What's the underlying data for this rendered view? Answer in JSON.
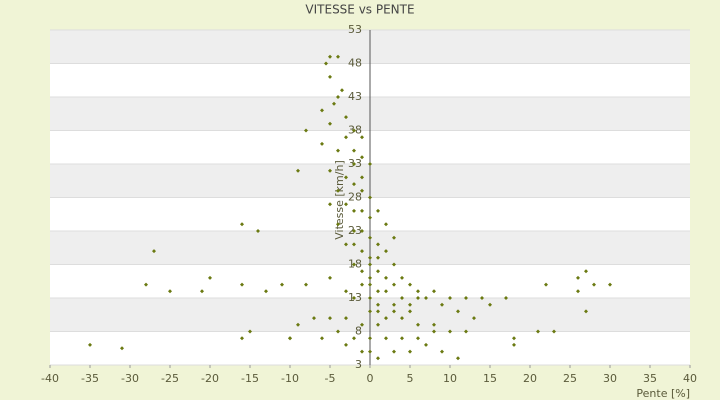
{
  "chart_data": {
    "type": "scatter",
    "title": "VITESSE vs PENTE",
    "x_label": "Pente [%]",
    "y_label": "Vitesse [km/h]",
    "xlim": [
      -40,
      40
    ],
    "xticks": [
      -40,
      -35,
      -30,
      -25,
      -20,
      -15,
      -10,
      -5,
      0,
      5,
      10,
      15,
      20,
      25,
      30,
      35,
      40
    ],
    "ylim": [
      3,
      53
    ],
    "yticks": [
      3,
      8,
      13,
      18,
      23,
      28,
      33,
      38,
      43,
      48,
      53
    ],
    "grid": true,
    "series": [
      {
        "color": "#6b7a12",
        "x": [
          -5,
          -5.5,
          -4,
          -5,
          -3.5,
          -4,
          -4.5,
          -6,
          -3,
          -5,
          -8,
          -2,
          -3,
          -1,
          -6,
          -4,
          -2,
          -1,
          -9,
          -5,
          -3,
          -2,
          -4,
          -1,
          -5,
          -3,
          -2,
          -1,
          0,
          -4,
          -2,
          -1,
          0,
          1,
          -3,
          -1,
          0,
          2,
          3,
          -2,
          -1,
          0,
          1,
          2,
          4,
          5,
          3,
          1,
          0,
          -1,
          2,
          4,
          6,
          7,
          5,
          3,
          1,
          0,
          -2,
          -3,
          -5,
          -8,
          6,
          8,
          10,
          12,
          14,
          15,
          9,
          11,
          13,
          2,
          4,
          6,
          8,
          1,
          -1,
          -3,
          -5,
          -7,
          -9,
          0,
          2,
          4,
          6,
          8,
          10,
          12,
          -2,
          -4,
          -6,
          -10,
          0,
          1,
          3,
          5,
          7,
          9,
          11,
          -1,
          -3,
          0,
          1,
          3,
          5,
          0,
          1,
          -2,
          3,
          2,
          1,
          0,
          -1,
          0,
          -2,
          -35,
          -31,
          -27,
          -28,
          -25,
          -21,
          -20,
          -16,
          -14,
          -16,
          -13,
          -11,
          -15,
          -16,
          -10,
          17,
          18,
          21,
          23,
          22,
          26,
          27,
          28,
          30,
          26,
          27,
          18
        ],
        "values": [
          49,
          48,
          49,
          46,
          44,
          43,
          42,
          41,
          40,
          39,
          38,
          38,
          37,
          37,
          36,
          35,
          35,
          34,
          32,
          32,
          31,
          30,
          29,
          29,
          27,
          27,
          26,
          26,
          25,
          24,
          23,
          23,
          22,
          21,
          21,
          20,
          19,
          20,
          18,
          18,
          17,
          16,
          17,
          16,
          16,
          15,
          15,
          14,
          15,
          15,
          14,
          13,
          13,
          13,
          12,
          12,
          12,
          13,
          13,
          14,
          16,
          15,
          14,
          14,
          13,
          13,
          13,
          12,
          12,
          11,
          10,
          10,
          10,
          9,
          9,
          9,
          9,
          10,
          10,
          10,
          9,
          7,
          7,
          7,
          7,
          8,
          8,
          8,
          7,
          8,
          7,
          7,
          5,
          4,
          5,
          5,
          6,
          5,
          4,
          5,
          6,
          11,
          11,
          11,
          11,
          18,
          19,
          21,
          22,
          24,
          26,
          28,
          31,
          33,
          33,
          6,
          5.5,
          20,
          15,
          14,
          14,
          16,
          24,
          23,
          15,
          14,
          15,
          8,
          7,
          7,
          13,
          7,
          8,
          8,
          15,
          16,
          17,
          15,
          15,
          14,
          11,
          6
        ]
      }
    ]
  }
}
